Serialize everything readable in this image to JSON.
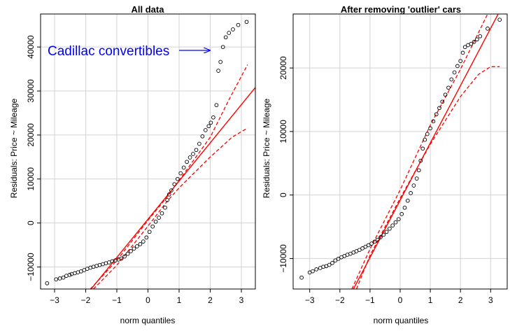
{
  "chart_data": [
    {
      "type": "scatter",
      "title": "All data",
      "xlabel": "norm quantiles",
      "ylabel": "Residuals: Price ~ Mileage",
      "xlim": [
        -3.45,
        3.45
      ],
      "ylim": [
        -15000,
        47500
      ],
      "xticks": [
        -3,
        -2,
        -1,
        0,
        1,
        2,
        3
      ],
      "yticks": [
        -10000,
        0,
        10000,
        20000,
        30000,
        40000
      ],
      "grid": true,
      "annotation": {
        "text": "Cadillac convertibles",
        "arrow_to": [
          2.3,
          37500
        ]
      },
      "reference_line": {
        "color": "#ff0000",
        "points": [
          [
            -2.0,
            -16500
          ],
          [
            3.45,
            30800
          ]
        ]
      },
      "confidence_band": {
        "color": "#ff0000",
        "upper": [
          [
            -1.85,
            -15000
          ],
          [
            -1.0,
            -8500
          ],
          [
            0.0,
            600
          ],
          [
            0.6,
            5800
          ],
          [
            1.0,
            9700
          ],
          [
            2.0,
            19500
          ],
          [
            2.6,
            28000
          ],
          [
            3.2,
            36000
          ]
        ],
        "lower": [
          [
            -1.75,
            -15000
          ],
          [
            -1.0,
            -9600
          ],
          [
            0.0,
            -700
          ],
          [
            0.6,
            4800
          ],
          [
            1.0,
            8000
          ],
          [
            2.0,
            15000
          ],
          [
            2.7,
            19500
          ],
          [
            3.2,
            21600
          ]
        ]
      },
      "points": [
        [
          -3.24,
          -13700
        ],
        [
          -2.95,
          -12800
        ],
        [
          -2.83,
          -12600
        ],
        [
          -2.72,
          -12400
        ],
        [
          -2.62,
          -12000
        ],
        [
          -2.52,
          -11800
        ],
        [
          -2.45,
          -11600
        ],
        [
          -2.35,
          -11400
        ],
        [
          -2.25,
          -11200
        ],
        [
          -2.15,
          -11000
        ],
        [
          -2.05,
          -10700
        ],
        [
          -1.95,
          -10400
        ],
        [
          -1.85,
          -10150
        ],
        [
          -1.75,
          -9950
        ],
        [
          -1.65,
          -9750
        ],
        [
          -1.55,
          -9550
        ],
        [
          -1.45,
          -9350
        ],
        [
          -1.35,
          -9150
        ],
        [
          -1.25,
          -8950
        ],
        [
          -1.15,
          -8700
        ],
        [
          -1.05,
          -8500
        ],
        [
          -0.95,
          -8300
        ],
        [
          -0.85,
          -8050
        ],
        [
          -0.75,
          -7600
        ],
        [
          -0.65,
          -7000
        ],
        [
          -0.55,
          -6400
        ],
        [
          -0.45,
          -5800
        ],
        [
          -0.35,
          -5300
        ],
        [
          -0.25,
          -4800
        ],
        [
          -0.15,
          -4200
        ],
        [
          -0.05,
          -3300
        ],
        [
          0.05,
          -2000
        ],
        [
          0.15,
          -800
        ],
        [
          0.25,
          300
        ],
        [
          0.35,
          1200
        ],
        [
          0.45,
          2200
        ],
        [
          0.55,
          3500
        ],
        [
          0.62,
          5200
        ],
        [
          0.68,
          6500
        ],
        [
          0.75,
          7400
        ],
        [
          0.85,
          8800
        ],
        [
          0.95,
          10000
        ],
        [
          1.05,
          11300
        ],
        [
          1.15,
          12600
        ],
        [
          1.25,
          13900
        ],
        [
          1.35,
          14900
        ],
        [
          1.45,
          15700
        ],
        [
          1.55,
          16600
        ],
        [
          1.65,
          18000
        ],
        [
          1.75,
          19700
        ],
        [
          1.85,
          21100
        ],
        [
          1.95,
          22000
        ],
        [
          2.02,
          22800
        ],
        [
          2.1,
          24000
        ],
        [
          2.2,
          26800
        ],
        [
          2.26,
          34600
        ],
        [
          2.33,
          36600
        ],
        [
          2.41,
          40000
        ],
        [
          2.5,
          42200
        ],
        [
          2.6,
          43200
        ],
        [
          2.73,
          44000
        ],
        [
          2.9,
          45000
        ],
        [
          3.17,
          45700
        ]
      ]
    },
    {
      "type": "scatter",
      "title": "After removing 'outlier' cars",
      "xlabel": "norm quantiles",
      "ylabel": "Residuals: Price ~ Mileage",
      "xlim": [
        -3.55,
        3.55
      ],
      "ylim": [
        -14800,
        28500
      ],
      "xticks": [
        -3,
        -2,
        -1,
        0,
        1,
        2,
        3
      ],
      "yticks": [
        -10000,
        0,
        10000,
        20000
      ],
      "grid": true,
      "reference_line": {
        "color": "#ff0000",
        "points": [
          [
            -1.55,
            -14800
          ],
          [
            3.55,
            31200
          ]
        ]
      },
      "confidence_band": {
        "color": "#ff0000",
        "upper": [
          [
            -1.6,
            -14800
          ],
          [
            -1.0,
            -8500
          ],
          [
            0.0,
            800
          ],
          [
            1.0,
            11000
          ],
          [
            2.0,
            19800
          ],
          [
            2.9,
            28500
          ]
        ],
        "lower": [
          [
            -1.45,
            -14800
          ],
          [
            -1.0,
            -9500
          ],
          [
            0.0,
            -500
          ],
          [
            1.0,
            8000
          ],
          [
            2.0,
            15500
          ],
          [
            2.6,
            19000
          ],
          [
            3.0,
            20200
          ],
          [
            3.3,
            20200
          ]
        ]
      },
      "points": [
        [
          -3.27,
          -13000
        ],
        [
          -3.0,
          -12200
        ],
        [
          -2.9,
          -12000
        ],
        [
          -2.78,
          -11700
        ],
        [
          -2.65,
          -11500
        ],
        [
          -2.55,
          -11300
        ],
        [
          -2.45,
          -11200
        ],
        [
          -2.35,
          -11000
        ],
        [
          -2.25,
          -10700
        ],
        [
          -2.15,
          -10300
        ],
        [
          -2.05,
          -10050
        ],
        [
          -1.95,
          -9800
        ],
        [
          -1.85,
          -9600
        ],
        [
          -1.75,
          -9400
        ],
        [
          -1.65,
          -9250
        ],
        [
          -1.55,
          -9050
        ],
        [
          -1.45,
          -8850
        ],
        [
          -1.35,
          -8650
        ],
        [
          -1.25,
          -8400
        ],
        [
          -1.15,
          -8150
        ],
        [
          -1.05,
          -7900
        ],
        [
          -0.95,
          -7650
        ],
        [
          -0.85,
          -7350
        ],
        [
          -0.75,
          -7050
        ],
        [
          -0.65,
          -6650
        ],
        [
          -0.55,
          -6250
        ],
        [
          -0.45,
          -5800
        ],
        [
          -0.35,
          -5300
        ],
        [
          -0.25,
          -4800
        ],
        [
          -0.15,
          -4300
        ],
        [
          -0.05,
          -3800
        ],
        [
          0.05,
          -3000
        ],
        [
          0.15,
          -2000
        ],
        [
          0.25,
          -900
        ],
        [
          0.35,
          300
        ],
        [
          0.45,
          1500
        ],
        [
          0.55,
          2600
        ],
        [
          0.62,
          3900
        ],
        [
          0.68,
          5400
        ],
        [
          0.75,
          7300
        ],
        [
          0.82,
          8700
        ],
        [
          0.9,
          9600
        ],
        [
          1.0,
          10500
        ],
        [
          1.1,
          11600
        ],
        [
          1.2,
          12700
        ],
        [
          1.3,
          13700
        ],
        [
          1.4,
          14700
        ],
        [
          1.5,
          15800
        ],
        [
          1.6,
          16900
        ],
        [
          1.7,
          18200
        ],
        [
          1.8,
          19300
        ],
        [
          1.9,
          20300
        ],
        [
          2.0,
          21100
        ],
        [
          2.08,
          22400
        ],
        [
          2.15,
          23300
        ],
        [
          2.25,
          23600
        ],
        [
          2.35,
          23800
        ],
        [
          2.45,
          24100
        ],
        [
          2.55,
          24500
        ],
        [
          2.65,
          25000
        ],
        [
          2.9,
          26200
        ],
        [
          3.3,
          27600
        ]
      ]
    }
  ]
}
